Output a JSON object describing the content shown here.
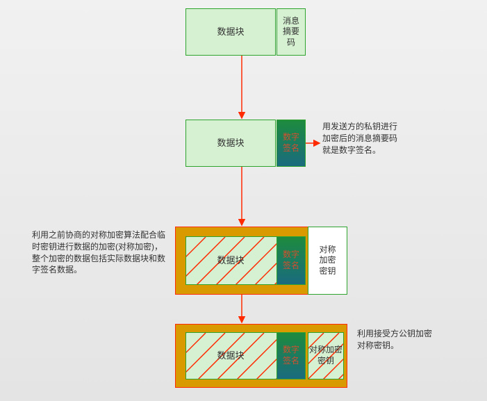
{
  "colors": {
    "canvas_bg_top": "#f1f1f1",
    "canvas_bg_bottom": "#e4e4e4",
    "data_block_fill": "#d6f1d2",
    "data_block_border": "#2ea32e",
    "digest_fill": "#d6f1d2",
    "digest_border": "#2ea32e",
    "signature_grad_top": "#1d8b3e",
    "signature_grad_bottom": "#1a6b7e",
    "signature_border": "#2ea32e",
    "signature_text": "#d05030",
    "key_fill": "#ffffff",
    "key_border": "#2ea32e",
    "envelope_fill": "#d99a00",
    "envelope_border": "#ff2a00",
    "hatched_fill": "#d6f1d2",
    "hatched_border": "#2ea32e",
    "hatch_line": "#ff2a00",
    "arrow": "#ff2a00",
    "text": "#333333"
  },
  "stage1": {
    "data_label": "数据块",
    "digest_label": "消息\n摘要\n码"
  },
  "stage2": {
    "data_label": "数据块",
    "signature_label": "数字\n签名",
    "annotation": "用发送方的私钥进行加密后的消息摘要码就是数字签名。"
  },
  "stage3": {
    "data_label": "数据块",
    "signature_label": "数字\n签名",
    "key_label": "对称\n加密\n密钥",
    "annotation": "利用之前协商的对称加密算法配合临时密钥进行数据的加密(对称加密)，整个加密的数据包括实际数据块和数字签名数据。"
  },
  "stage4": {
    "data_label": "数据块",
    "signature_label": "数字\n签名",
    "key_label": "对称加密密钥",
    "annotation": "利用接受方公钥加密对称密钥。"
  },
  "layout": {
    "stage1": {
      "data": [
        267,
        12,
        130,
        68
      ],
      "digest": [
        398,
        12,
        42,
        68
      ]
    },
    "stage2": {
      "data": [
        267,
        172,
        130,
        68
      ],
      "sig": [
        398,
        172,
        42,
        68
      ]
    },
    "stage3": {
      "env": [
        252,
        326,
        248,
        98
      ],
      "inner": [
        267,
        340,
        173,
        70
      ],
      "data": [
        267,
        340,
        130,
        70
      ],
      "sig": [
        398,
        340,
        42,
        70
      ],
      "key": [
        443,
        326,
        57,
        98
      ]
    },
    "stage4": {
      "env": [
        252,
        466,
        248,
        92
      ],
      "inner": [
        267,
        478,
        173,
        68
      ],
      "data": [
        267,
        478,
        130,
        68
      ],
      "sig": [
        398,
        478,
        42,
        68
      ],
      "key": [
        443,
        478,
        52,
        68
      ]
    },
    "annotations": {
      "a2": [
        464,
        174,
        116
      ],
      "a3": [
        46,
        330,
        196
      ],
      "a4": [
        514,
        472,
        116
      ]
    },
    "arrows": {
      "v1": [
        348,
        80,
        348,
        170
      ],
      "v2": [
        348,
        240,
        348,
        324
      ],
      "v3": [
        348,
        424,
        348,
        464
      ],
      "h2": [
        440,
        206,
        460,
        206
      ]
    },
    "arrow_width": 1.5,
    "arrowhead": 7
  }
}
